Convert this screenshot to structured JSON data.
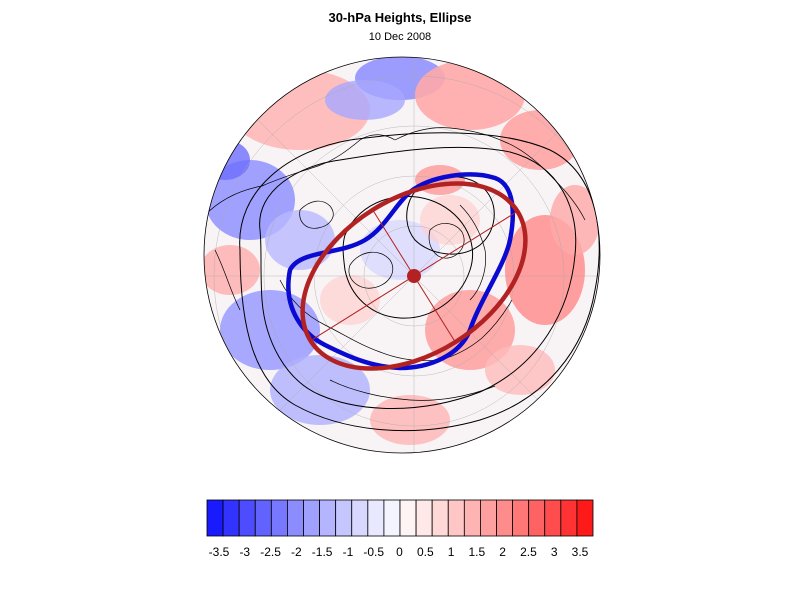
{
  "title": "30-hPa Heights, Ellipse",
  "subtitle": "10 Dec 2008",
  "colorbar": {
    "labels": [
      "-3.5",
      "-3",
      "-2.5",
      "-2",
      "-1.5",
      "-1",
      "-0.5",
      "0",
      "0.5",
      "1",
      "1.5",
      "2",
      "2.5",
      "3",
      "3.5"
    ],
    "colors": [
      "#1a1aff",
      "#3333ff",
      "#4d4dff",
      "#6262ff",
      "#7777ff",
      "#8c8cff",
      "#a0a0ff",
      "#b4b4ff",
      "#c6c6ff",
      "#d8d8ff",
      "#e8e8ff",
      "#f4f4ff",
      "#fff4f4",
      "#ffe8e8",
      "#ffd8d8",
      "#ffc6c6",
      "#ffb4b4",
      "#ffa0a0",
      "#ff8c8c",
      "#ff7777",
      "#ff6262",
      "#ff4d4d",
      "#ff3333",
      "#ff1a1a"
    ]
  },
  "colors": {
    "vortex_edge": "#0a0ad0",
    "ellipse": "#b22222",
    "positive": "#ff4040",
    "negative": "#4040ff"
  }
}
